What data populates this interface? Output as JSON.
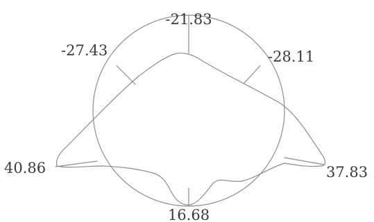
{
  "labels": {
    "top": "-21.83",
    "upper_left": "-27.43",
    "upper_right": "-28.11",
    "left": "40.86",
    "right": "37.83",
    "bottom": "16.68"
  },
  "colors": {
    "stroke": "#8c8c8c",
    "text": "#3a3a3a",
    "background": "#ffffff"
  }
}
